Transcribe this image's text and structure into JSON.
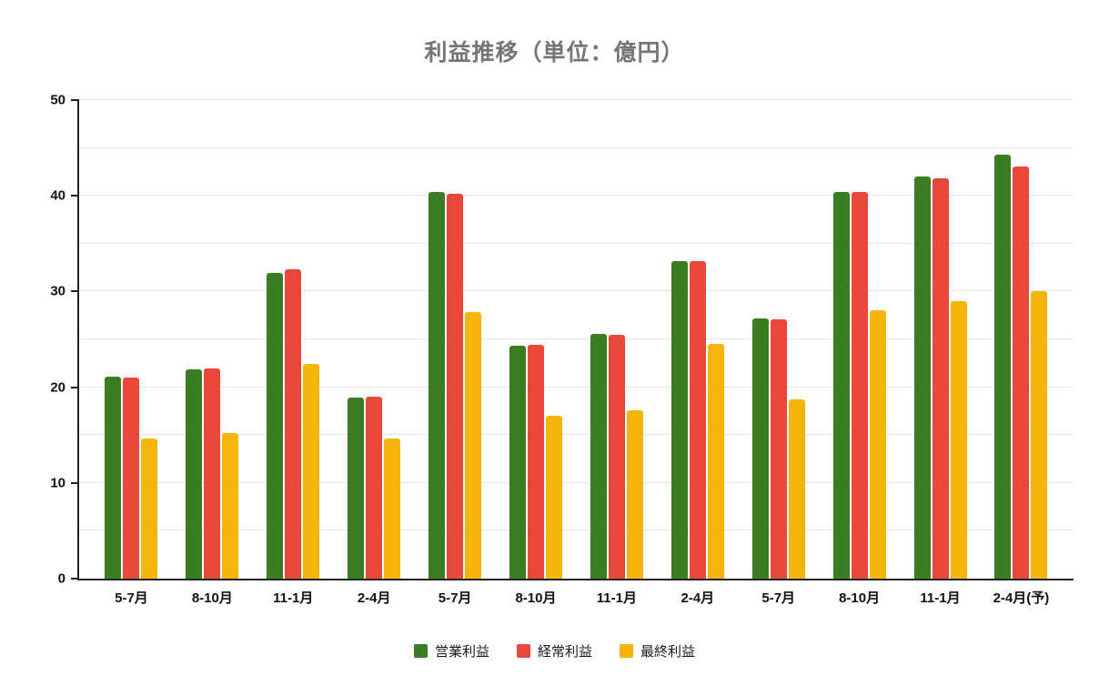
{
  "title": "利益推移（単位：億円）",
  "colors": {
    "operating_green": "#3B7D23",
    "ordinary_red": "#E8473B",
    "net_yellow": "#F5B50A",
    "gridline": "#E6E6E6",
    "axis": "#222222",
    "title_text": "#757575",
    "label_text": "#111111",
    "background": "#FFFFFF"
  },
  "chart_data": {
    "type": "bar",
    "title": "利益推移（単位：億円）",
    "xlabel": "",
    "ylabel": "",
    "ylim": [
      0,
      50
    ],
    "yticks": [
      0,
      10,
      20,
      30,
      40,
      50
    ],
    "grid_interval": 5,
    "grid": true,
    "legend_position": "bottom",
    "categories": [
      "5-7月",
      "8-10月",
      "11-1月",
      "2-4月",
      "5-7月",
      "8-10月",
      "11-1月",
      "2-4月",
      "5-7月",
      "8-10月",
      "11-1月",
      "2-4月(予)"
    ],
    "series": [
      {
        "name": "営業利益",
        "color": "#3B7D23",
        "values": [
          21.1,
          21.9,
          31.9,
          18.9,
          40.4,
          24.3,
          25.6,
          33.2,
          27.2,
          40.4,
          42.0,
          44.3
        ]
      },
      {
        "name": "経常利益",
        "color": "#E8473B",
        "values": [
          21.0,
          22.0,
          32.3,
          19.0,
          40.2,
          24.4,
          25.5,
          33.2,
          27.1,
          40.4,
          41.8,
          43.1
        ]
      },
      {
        "name": "最終利益",
        "color": "#F5B50A",
        "values": [
          14.6,
          15.2,
          22.4,
          14.6,
          27.9,
          17.0,
          17.6,
          24.5,
          18.7,
          28.0,
          29.0,
          30.0
        ]
      }
    ]
  }
}
